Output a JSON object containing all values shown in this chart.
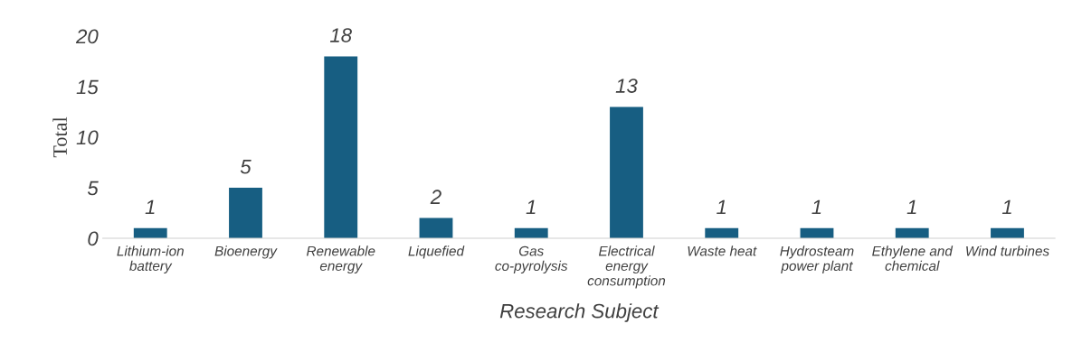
{
  "chart_data": {
    "type": "bar",
    "categories": [
      "Lithium-ion battery",
      "Bioenergy",
      "Renewable energy",
      "Liquefied",
      "Gas co-pyrolysis",
      "Electrical energy consumption",
      "Waste heat",
      "Hydrosteam power plant",
      "Ethylene and chemical",
      "Wind turbines"
    ],
    "values": [
      1,
      5,
      18,
      2,
      1,
      13,
      1,
      1,
      1,
      1
    ],
    "color": "#175e82",
    "xlabel": "Research Subject",
    "ylabel": "Total",
    "ylim": [
      0,
      20
    ],
    "yticks": [
      0,
      5,
      10,
      15,
      20
    ],
    "data_labels": true,
    "grid": false,
    "legend": false
  }
}
